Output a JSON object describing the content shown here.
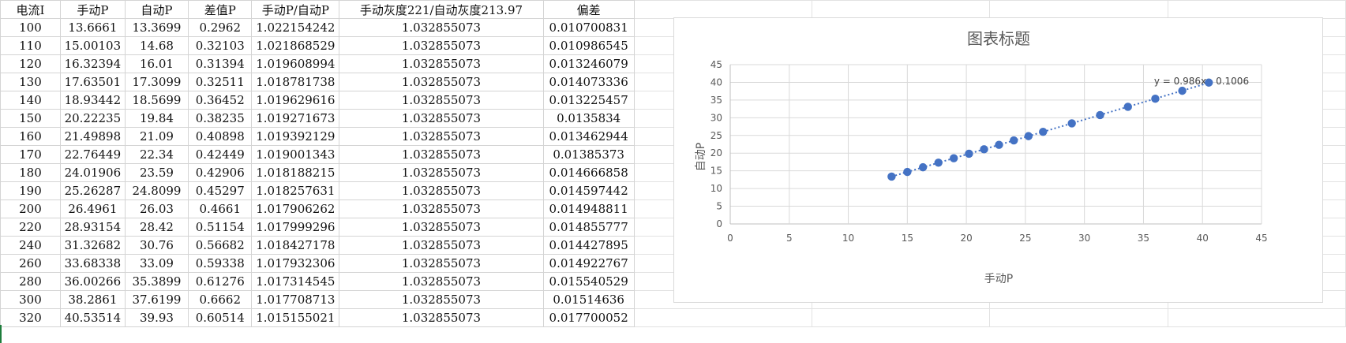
{
  "sheet": {
    "headers": [
      "电流I",
      "手动P",
      "自动P",
      "差值P",
      "手动P/自动P",
      "手动灰度221/自动灰度213.97",
      "偏差"
    ],
    "rows": [
      [
        "100",
        "13.6661",
        "13.3699",
        "0.2962",
        "1.022154242",
        "1.032855073",
        "0.010700831"
      ],
      [
        "110",
        "15.00103",
        "14.68",
        "0.32103",
        "1.021868529",
        "1.032855073",
        "0.010986545"
      ],
      [
        "120",
        "16.32394",
        "16.01",
        "0.31394",
        "1.019608994",
        "1.032855073",
        "0.013246079"
      ],
      [
        "130",
        "17.63501",
        "17.3099",
        "0.32511",
        "1.018781738",
        "1.032855073",
        "0.014073336"
      ],
      [
        "140",
        "18.93442",
        "18.5699",
        "0.36452",
        "1.019629616",
        "1.032855073",
        "0.013225457"
      ],
      [
        "150",
        "20.22235",
        "19.84",
        "0.38235",
        "1.019271673",
        "1.032855073",
        "0.0135834"
      ],
      [
        "160",
        "21.49898",
        "21.09",
        "0.40898",
        "1.019392129",
        "1.032855073",
        "0.013462944"
      ],
      [
        "170",
        "22.76449",
        "22.34",
        "0.42449",
        "1.019001343",
        "1.032855073",
        "0.01385373"
      ],
      [
        "180",
        "24.01906",
        "23.59",
        "0.42906",
        "1.018188215",
        "1.032855073",
        "0.014666858"
      ],
      [
        "190",
        "25.26287",
        "24.8099",
        "0.45297",
        "1.018257631",
        "1.032855073",
        "0.014597442"
      ],
      [
        "200",
        "26.4961",
        "26.03",
        "0.4661",
        "1.017906262",
        "1.032855073",
        "0.014948811"
      ],
      [
        "220",
        "28.93154",
        "28.42",
        "0.51154",
        "1.017999296",
        "1.032855073",
        "0.014855777"
      ],
      [
        "240",
        "31.32682",
        "30.76",
        "0.56682",
        "1.018427178",
        "1.032855073",
        "0.014427895"
      ],
      [
        "260",
        "33.68338",
        "33.09",
        "0.59338",
        "1.017932306",
        "1.032855073",
        "0.014922767"
      ],
      [
        "280",
        "36.00266",
        "35.3899",
        "0.61276",
        "1.017314545",
        "1.032855073",
        "0.015540529"
      ],
      [
        "300",
        "38.2861",
        "37.6199",
        "0.6662",
        "1.017708713",
        "1.032855073",
        "0.01514636"
      ],
      [
        "320",
        "40.53514",
        "39.93",
        "0.60514",
        "1.015155021",
        "1.032855073",
        "0.017700052"
      ]
    ]
  },
  "chart_data": {
    "type": "scatter",
    "title": "图表标题",
    "xlabel": "手动P",
    "ylabel": "自动P",
    "xlim": [
      0,
      45
    ],
    "ylim": [
      0,
      45
    ],
    "xticks": [
      "0",
      "5",
      "10",
      "15",
      "20",
      "25",
      "30",
      "35",
      "40",
      "45"
    ],
    "yticks": [
      "0",
      "5",
      "10",
      "15",
      "20",
      "25",
      "30",
      "35",
      "40",
      "45"
    ],
    "trendline_label": "y = 0.986x - 0.1006",
    "trendline": {
      "slope": 0.986,
      "intercept": -0.1006
    },
    "grid": true,
    "legend": "none",
    "point_color": "#4472c4",
    "points": [
      [
        13.6661,
        13.3699
      ],
      [
        15.00103,
        14.68
      ],
      [
        16.32394,
        16.01
      ],
      [
        17.63501,
        17.3099
      ],
      [
        18.93442,
        18.5699
      ],
      [
        20.22235,
        19.84
      ],
      [
        21.49898,
        21.09
      ],
      [
        22.76449,
        22.34
      ],
      [
        24.01906,
        23.59
      ],
      [
        25.26287,
        24.8099
      ],
      [
        26.4961,
        26.03
      ],
      [
        28.93154,
        28.42
      ],
      [
        31.32682,
        30.76
      ],
      [
        33.68338,
        33.09
      ],
      [
        36.00266,
        35.3899
      ],
      [
        38.2861,
        37.6199
      ],
      [
        40.53514,
        39.93
      ]
    ]
  }
}
